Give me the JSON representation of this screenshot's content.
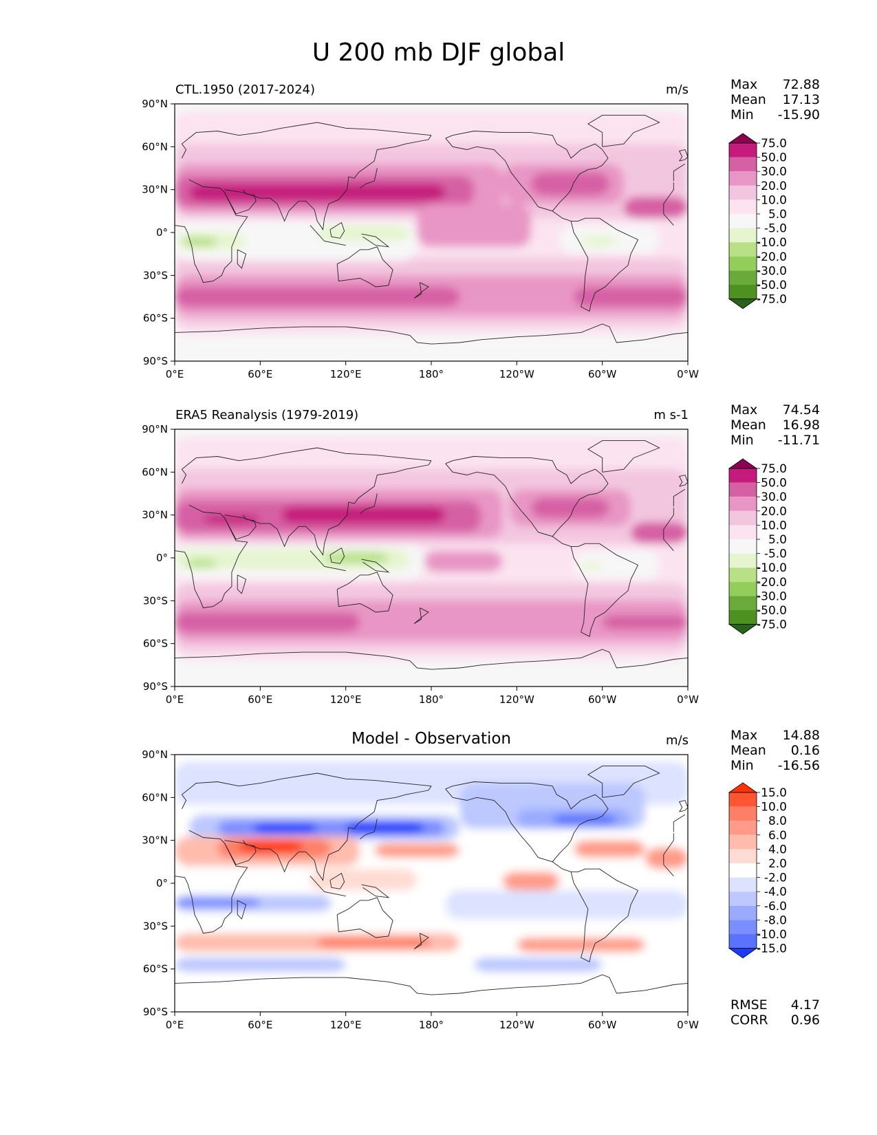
{
  "figure_title": "U 200 mb DJF global",
  "axes": {
    "lat_ticks": [
      "90°N",
      "60°N",
      "30°N",
      "0°",
      "30°S",
      "60°S",
      "90°S"
    ],
    "lon_ticks": [
      "0°E",
      "60°E",
      "120°E",
      "180°",
      "120°W",
      "60°W",
      "0°W"
    ]
  },
  "panels": [
    {
      "title": "CTL.1950 (2017-2024)",
      "units": "m/s",
      "stats": [
        {
          "label": "Max",
          "value": "72.88"
        },
        {
          "label": "Mean",
          "value": "17.13"
        },
        {
          "label": "Min",
          "value": "-15.90"
        }
      ],
      "colorbar_ticks": [
        "75.0",
        "50.0",
        "30.0",
        "20.0",
        "10.0",
        "5.0",
        "-5.0",
        "-10.0",
        "-20.0",
        "-30.0",
        "-50.0",
        "-75.0"
      ]
    },
    {
      "title": "ERA5 Reanalysis (1979-2019)",
      "units": "m s-1",
      "stats": [
        {
          "label": "Max",
          "value": "74.54"
        },
        {
          "label": "Mean",
          "value": "16.98"
        },
        {
          "label": "Min",
          "value": "-11.71"
        }
      ],
      "colorbar_ticks": [
        "75.0",
        "50.0",
        "30.0",
        "20.0",
        "10.0",
        "5.0",
        "-5.0",
        "-10.0",
        "-20.0",
        "-30.0",
        "-50.0",
        "-75.0"
      ]
    },
    {
      "title": "Model - Observation",
      "units": "m/s",
      "stats": [
        {
          "label": "Max",
          "value": "14.88"
        },
        {
          "label": "Mean",
          "value": "0.16"
        },
        {
          "label": "Min",
          "value": "-16.56"
        }
      ],
      "colorbar_ticks": [
        "15.0",
        "10.0",
        "8.0",
        "6.0",
        "4.0",
        "2.0",
        "-2.0",
        "-4.0",
        "-6.0",
        "-8.0",
        "-10.0",
        "-15.0"
      ],
      "metrics": [
        {
          "label": "RMSE",
          "value": "4.17"
        },
        {
          "label": "CORR",
          "value": "0.96"
        }
      ]
    }
  ],
  "colors": {
    "pink_scale": [
      "#8e0152",
      "#c51b7d",
      "#d660a4",
      "#e896c5",
      "#f3c6e0",
      "#fbe3f0",
      "#f7f7f7",
      "#e6f5d0",
      "#b8e186",
      "#93cd5a",
      "#6aaa3a",
      "#4d9221",
      "#276419"
    ],
    "diff_scale": [
      "#ff3300",
      "#ff5533",
      "#ff7f66",
      "#ff9b88",
      "#ffbcad",
      "#ffdcd3",
      "#ffffff",
      "#dce2ff",
      "#bcc8ff",
      "#9aabff",
      "#7b8eff",
      "#5a72ff",
      "#1a3cff"
    ]
  }
}
